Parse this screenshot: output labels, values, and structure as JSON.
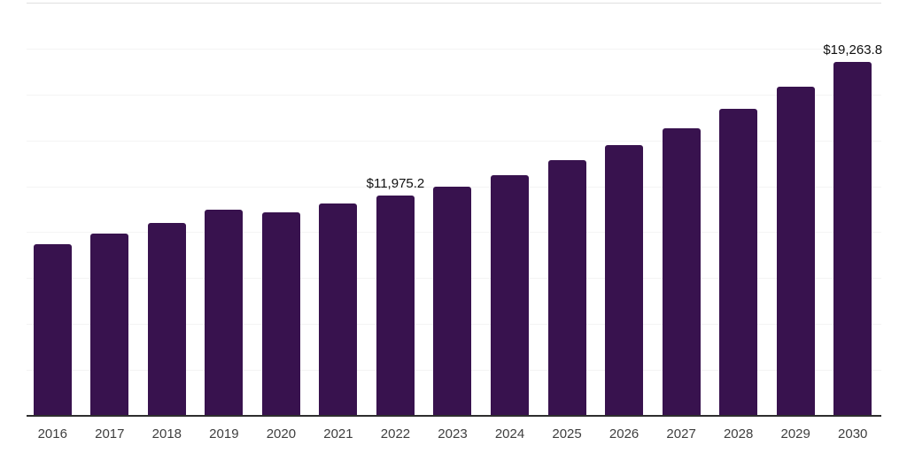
{
  "chart_data": {
    "type": "bar",
    "title": "",
    "xlabel": "",
    "ylabel": "",
    "categories": [
      "2016",
      "2017",
      "2018",
      "2019",
      "2020",
      "2021",
      "2022",
      "2023",
      "2024",
      "2025",
      "2026",
      "2027",
      "2028",
      "2029",
      "2030"
    ],
    "values": [
      9360,
      9920,
      10525,
      11250,
      11085,
      11565,
      11975.2,
      12475,
      13100,
      13910,
      14740,
      15640,
      16725,
      17940,
      19263.8
    ],
    "value_labels": [
      "",
      "",
      "",
      "",
      "",
      "",
      "$11,975.2",
      "",
      "",
      "",
      "",
      "",
      "",
      "",
      "$19,263.8"
    ],
    "ylim": [
      0,
      22500
    ],
    "gridline_step": 2500,
    "grid": true,
    "legend": false,
    "colors": {
      "bar": "#38124e",
      "axis_line": "#2e2e2e",
      "gridline": "#f4f4f4",
      "top_gridline": "#e0e0e0",
      "value_label": "#101010",
      "tick_label": "#3f3f3f",
      "background": "#ffffff"
    }
  }
}
